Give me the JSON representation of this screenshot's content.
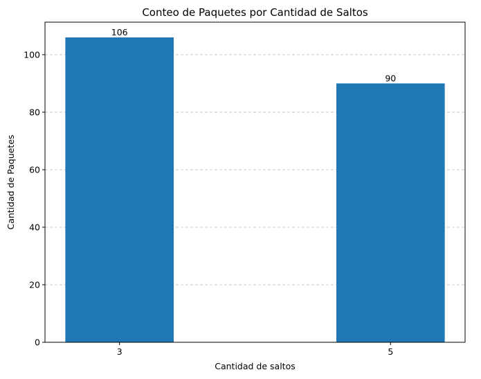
{
  "chart_data": {
    "type": "bar",
    "title": "Conteo de Paquetes por Cantidad de Saltos",
    "xlabel": "Cantidad de saltos",
    "ylabel": "Cantidad de Paquetes",
    "categories": [
      "3",
      "5"
    ],
    "x": [
      3,
      5
    ],
    "values": [
      106,
      90
    ],
    "data_labels": [
      "106",
      "90"
    ],
    "xlim": [
      2.45,
      5.55
    ],
    "ylim": [
      0,
      111.3
    ],
    "yticks": [
      0,
      20,
      40,
      60,
      80,
      100
    ],
    "ytick_labels": [
      "0",
      "20",
      "40",
      "60",
      "80",
      "100"
    ],
    "bar_width": 0.8,
    "grid": "y-dashed",
    "bar_color": "#1f77b4",
    "grid_color": "#c8c8c8"
  }
}
